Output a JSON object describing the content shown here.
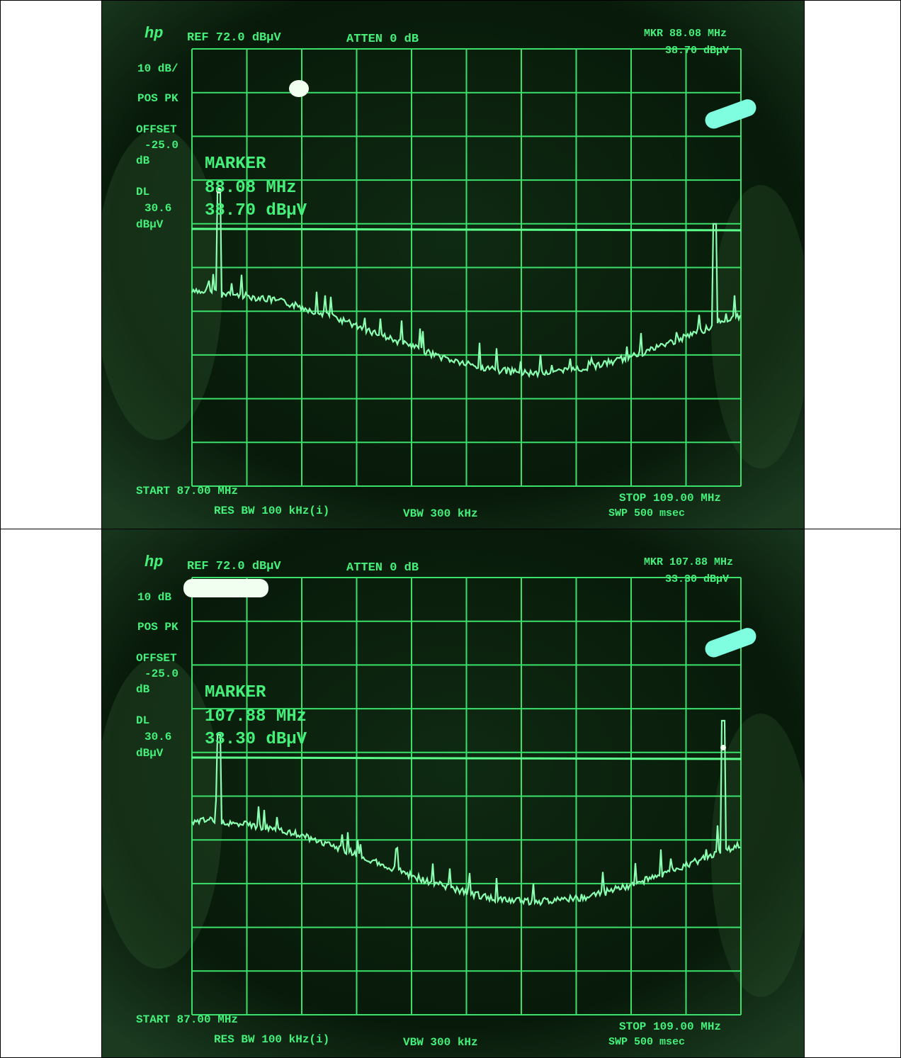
{
  "screens": [
    {
      "header": {
        "logo": "hp",
        "ref": "REF 72.0 dBµV",
        "atten": "ATTEN 0 dB",
        "mkr": "MKR 88.08 MHz",
        "mkr_level": "38.70 dBµV"
      },
      "side": [
        "10 dB/",
        "POS PK",
        "OFFSET",
        "-25.0",
        "dB",
        "DL",
        "30.6",
        "dBµV"
      ],
      "marker": {
        "title": "MARKER",
        "freq": "88.08 MHz",
        "level": "38.70 dBµV"
      },
      "footer": {
        "start": "START 87.00 MHz",
        "res_bw": "RES BW 100 kHz(i)",
        "vbw": "VBW 300 kHz",
        "stop": "STOP 109.00 MHz",
        "swp": "SWP 500 msec"
      }
    },
    {
      "header": {
        "logo": "hp",
        "ref": "REF 72.0 dBµV",
        "atten": "ATTEN 0 dB",
        "mkr": "MKR 107.88 MHz",
        "mkr_level": "33.30 dBµV"
      },
      "side": [
        "10 dB",
        "POS PK",
        "OFFSET",
        "-25.0",
        "dB",
        "DL",
        "30.6",
        "dBµV"
      ],
      "marker": {
        "title": "MARKER",
        "freq": "107.88 MHz",
        "level": "33.30 dBµV"
      },
      "footer": {
        "start": "START 87.00 MHz",
        "res_bw": "RES BW 100 kHz(i)",
        "vbw": "VBW 300 kHz",
        "stop": "STOP 109.00 MHz",
        "swp": "SWP 500 msec"
      }
    }
  ]
}
